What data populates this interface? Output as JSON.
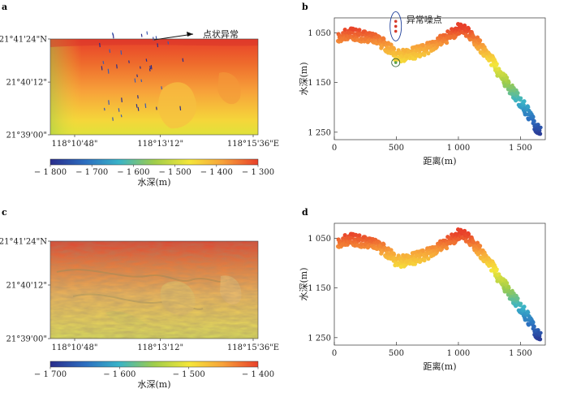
{
  "panels": {
    "a": {
      "letter": "a"
    },
    "b": {
      "letter": "b"
    },
    "c": {
      "letter": "c"
    },
    "d": {
      "letter": "d"
    }
  },
  "colors": {
    "ramp": [
      "#2a2d8c",
      "#2c6fc0",
      "#39b3c8",
      "#9fcd4a",
      "#f5e63a",
      "#f7a23a",
      "#e8402a"
    ]
  },
  "chart_data": [
    {
      "id": "a",
      "type": "heatmap",
      "y_ticks": [
        "21°41'24\"N",
        "21°40'12\"",
        "21°39'00\""
      ],
      "x_ticks": [
        "118°10'48\"",
        "118°13'12\"",
        "118°15'36\"E"
      ],
      "annotation": "点状异常",
      "colorbar": {
        "ticks": [
          -1800,
          -1700,
          -1600,
          -1500,
          -1400,
          -1300
        ],
        "tick_labels": [
          "− 1 800",
          "− 1 700",
          "− 1 600",
          "− 1 500",
          "− 1 400",
          "− 1 300"
        ],
        "label": "水深(m)",
        "range": [
          -1800,
          -1300
        ]
      }
    },
    {
      "id": "b",
      "type": "scatter",
      "xlabel": "距离(m)",
      "ylabel": "水深(m)",
      "xlim": [
        0,
        1700
      ],
      "ylim": [
        1020,
        1265
      ],
      "y_inverted": true,
      "x_ticks": [
        0,
        500,
        1000,
        1500
      ],
      "x_tick_labels": [
        "0",
        "500",
        "1 000",
        "1 500"
      ],
      "y_ticks": [
        1050,
        1150,
        1250
      ],
      "y_tick_labels": [
        "1 050",
        "1 150",
        "1 250"
      ],
      "annotation": "异常噪点",
      "profile": [
        [
          30,
          1063
        ],
        [
          70,
          1055
        ],
        [
          150,
          1052
        ],
        [
          250,
          1058
        ],
        [
          350,
          1066
        ],
        [
          440,
          1080
        ],
        [
          480,
          1093
        ],
        [
          520,
          1097
        ],
        [
          600,
          1094
        ],
        [
          700,
          1086
        ],
        [
          800,
          1075
        ],
        [
          900,
          1060
        ],
        [
          1000,
          1043
        ],
        [
          1080,
          1050
        ],
        [
          1150,
          1070
        ],
        [
          1250,
          1098
        ],
        [
          1320,
          1128
        ],
        [
          1400,
          1155
        ],
        [
          1480,
          1182
        ],
        [
          1560,
          1210
        ],
        [
          1620,
          1238
        ],
        [
          1660,
          1250
        ]
      ],
      "outliers": [
        [
          495,
          1027
        ],
        [
          495,
          1037
        ],
        [
          495,
          1047
        ],
        [
          495,
          1110
        ]
      ],
      "band": 12
    },
    {
      "id": "c",
      "type": "heatmap",
      "y_ticks": [
        "21°41'24\"N",
        "21°40'12\"",
        "21°39'00\""
      ],
      "x_ticks": [
        "118°10'48\"",
        "118°13'12\"",
        "118°15'36\"E"
      ],
      "colorbar": {
        "ticks": [
          -1700,
          -1600,
          -1500,
          -1400
        ],
        "tick_labels": [
          "− 1 700",
          "− 1 600",
          "− 1 500",
          "− 1 400"
        ],
        "label": "水深(m)",
        "range": [
          -1700,
          -1400
        ]
      }
    },
    {
      "id": "d",
      "type": "scatter",
      "xlabel": "距离(m)",
      "ylabel": "水深(m)",
      "xlim": [
        0,
        1700
      ],
      "ylim": [
        1020,
        1265
      ],
      "y_inverted": true,
      "x_ticks": [
        0,
        500,
        1000,
        1500
      ],
      "x_tick_labels": [
        "0",
        "500",
        "1 000",
        "1 500"
      ],
      "y_ticks": [
        1050,
        1150,
        1250
      ],
      "y_tick_labels": [
        "1 050",
        "1 150",
        "1 250"
      ],
      "profile": [
        [
          30,
          1063
        ],
        [
          70,
          1055
        ],
        [
          150,
          1052
        ],
        [
          250,
          1058
        ],
        [
          350,
          1066
        ],
        [
          440,
          1080
        ],
        [
          480,
          1093
        ],
        [
          520,
          1097
        ],
        [
          600,
          1094
        ],
        [
          700,
          1086
        ],
        [
          800,
          1075
        ],
        [
          900,
          1060
        ],
        [
          1000,
          1043
        ],
        [
          1080,
          1050
        ],
        [
          1150,
          1070
        ],
        [
          1250,
          1098
        ],
        [
          1320,
          1128
        ],
        [
          1400,
          1155
        ],
        [
          1480,
          1182
        ],
        [
          1560,
          1210
        ],
        [
          1620,
          1238
        ],
        [
          1660,
          1250
        ]
      ],
      "outliers": [],
      "band": 12
    }
  ]
}
